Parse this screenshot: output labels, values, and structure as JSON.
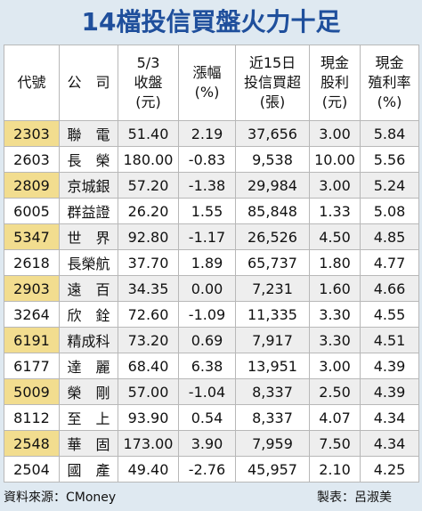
{
  "title": "14檔投信買盤火力十足",
  "table": {
    "header": [
      [
        "代號"
      ],
      [
        "公　司"
      ],
      [
        "5/3",
        "收盤",
        "(元)"
      ],
      [
        "漲幅",
        "(%)"
      ],
      [
        "近15日",
        "投信買超",
        "(張)"
      ],
      [
        "現金",
        "股利",
        "(元)"
      ],
      [
        "現金",
        "殖利率",
        "(%)"
      ]
    ],
    "rows": [
      [
        "2303",
        "聯　電",
        "51.40",
        "2.19",
        "37,656",
        "3.00",
        "5.84"
      ],
      [
        "2603",
        "長　榮",
        "180.00",
        "-0.83",
        "9,538",
        "10.00",
        "5.56"
      ],
      [
        "2809",
        "京城銀",
        "57.20",
        "-1.38",
        "29,984",
        "3.00",
        "5.24"
      ],
      [
        "6005",
        "群益證",
        "26.20",
        "1.55",
        "85,848",
        "1.33",
        "5.08"
      ],
      [
        "5347",
        "世　界",
        "92.80",
        "-1.17",
        "26,526",
        "4.50",
        "4.85"
      ],
      [
        "2618",
        "長榮航",
        "37.70",
        "1.89",
        "65,737",
        "1.80",
        "4.77"
      ],
      [
        "2903",
        "遠　百",
        "34.35",
        "0.00",
        "7,231",
        "1.60",
        "4.66"
      ],
      [
        "3264",
        "欣　銓",
        "72.60",
        "-1.09",
        "11,335",
        "3.30",
        "4.55"
      ],
      [
        "6191",
        "精成科",
        "73.20",
        "0.69",
        "7,917",
        "3.30",
        "4.51"
      ],
      [
        "6177",
        "達　麗",
        "68.40",
        "6.38",
        "13,951",
        "3.00",
        "4.39"
      ],
      [
        "5009",
        "榮　剛",
        "57.00",
        "-1.04",
        "8,337",
        "2.50",
        "4.39"
      ],
      [
        "8112",
        "至　上",
        "93.90",
        "0.54",
        "8,337",
        "4.07",
        "4.34"
      ],
      [
        "2548",
        "華　固",
        "173.00",
        "3.90",
        "7,959",
        "7.50",
        "4.34"
      ],
      [
        "2504",
        "國　產",
        "49.40",
        "-2.76",
        "45,957",
        "2.10",
        "4.25"
      ]
    ]
  },
  "footer": {
    "source": "資料來源：CMoney",
    "author": "製表：呂淑美"
  }
}
